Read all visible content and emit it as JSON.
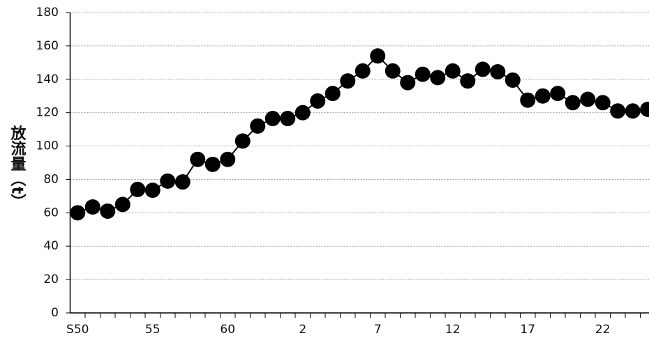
{
  "chart_data": {
    "type": "line",
    "y_label": "放流量（t）",
    "categories": [
      "S50",
      null,
      null,
      null,
      null,
      "55",
      null,
      null,
      null,
      null,
      "60",
      null,
      null,
      null,
      null,
      "2",
      null,
      null,
      null,
      null,
      "7",
      null,
      null,
      null,
      null,
      "12",
      null,
      null,
      null,
      null,
      "17",
      null,
      null,
      null,
      null,
      "22",
      null,
      null,
      null
    ],
    "values": [
      60,
      63.5,
      61,
      65,
      74,
      73.5,
      79,
      78.5,
      92,
      89,
      92,
      103,
      112,
      116.5,
      116.5,
      120,
      127,
      131.5,
      139,
      145,
      154,
      145,
      138,
      143,
      141,
      145,
      139,
      146,
      144.5,
      139.5,
      127.5,
      130,
      131.5,
      126,
      128,
      126,
      121,
      121,
      122
    ],
    "color": "#000000",
    "ylim": [
      0,
      180
    ],
    "yticks": [
      0,
      20,
      40,
      60,
      80,
      100,
      120,
      140,
      160,
      180
    ],
    "grid": true
  }
}
